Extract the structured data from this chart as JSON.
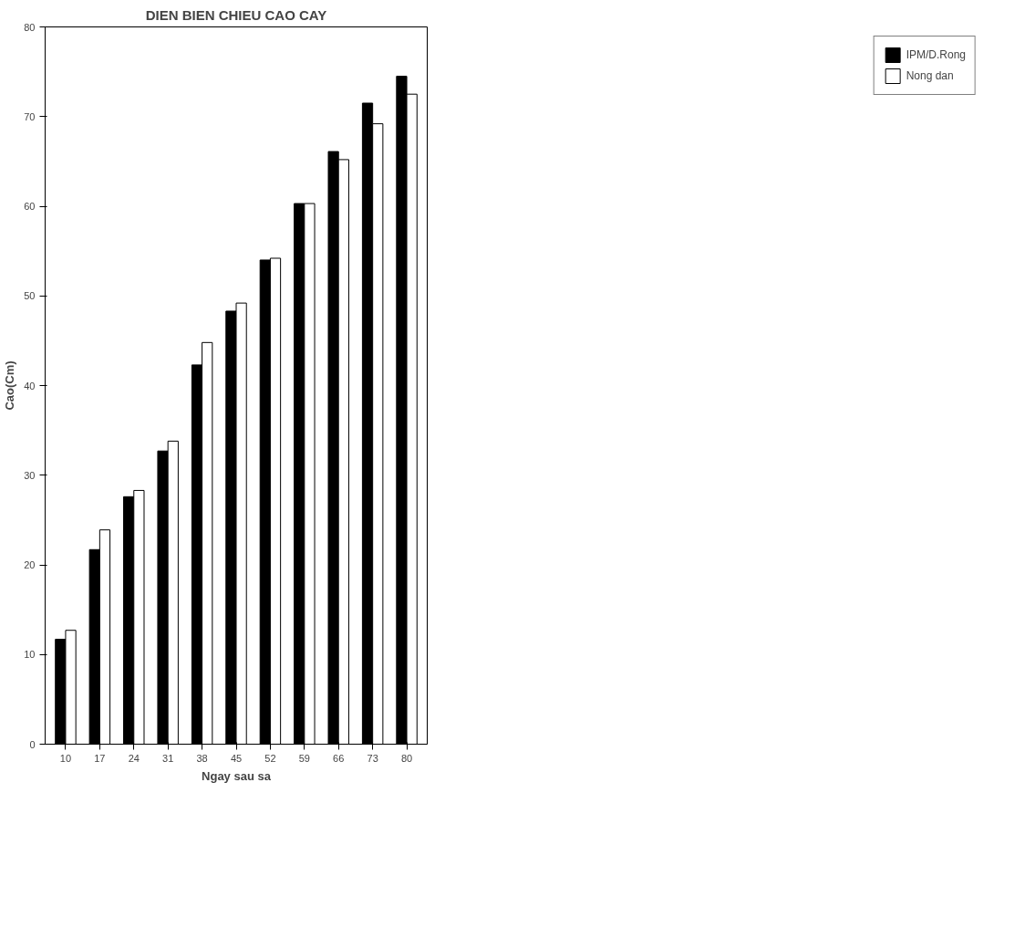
{
  "chart_data": {
    "type": "bar",
    "title": "DIEN BIEN CHIEU CAO CAY",
    "xlabel": "Ngay sau sa",
    "ylabel": "Cao(Cm)",
    "categories": [
      "10",
      "17",
      "24",
      "31",
      "38",
      "45",
      "52",
      "59",
      "66",
      "73",
      "80"
    ],
    "series": [
      {
        "name": "IPM/D.Rong",
        "color": "#000000",
        "values": [
          11.7,
          21.7,
          27.6,
          32.7,
          42.3,
          48.3,
          54.0,
          60.3,
          66.1,
          71.5,
          74.5
        ]
      },
      {
        "name": "Nong dan",
        "color": "#ffffff",
        "values": [
          12.7,
          23.9,
          28.3,
          33.8,
          44.8,
          49.2,
          54.2,
          60.3,
          65.2,
          69.2,
          72.5
        ]
      }
    ],
    "ylim": [
      0,
      80
    ],
    "yticks": [
      0,
      10,
      20,
      30,
      40,
      50,
      60,
      70,
      80
    ],
    "grid": false,
    "legend": "right"
  }
}
